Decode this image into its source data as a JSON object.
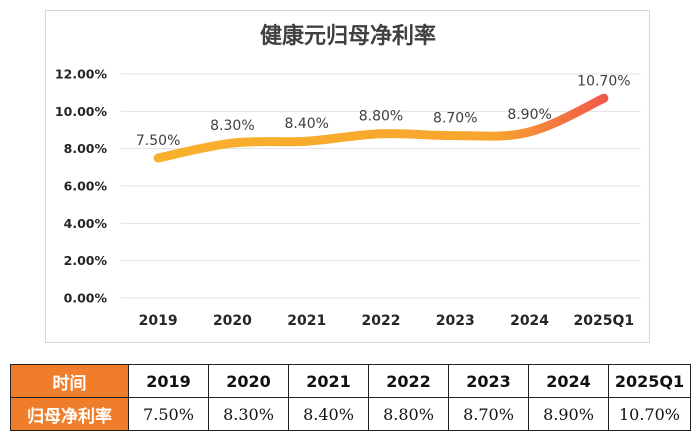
{
  "colors": {
    "line_start": "#F8B12C",
    "line_end": "#F0594A",
    "table_label_bg": "#EF7D2A"
  },
  "chart_data": {
    "type": "line",
    "title": "健康元归母净利率",
    "categories": [
      "2019",
      "2020",
      "2021",
      "2022",
      "2023",
      "2024",
      "2025Q1"
    ],
    "values": [
      7.5,
      8.3,
      8.4,
      8.8,
      8.7,
      8.9,
      10.7
    ],
    "data_labels": [
      "7.50%",
      "8.30%",
      "8.40%",
      "8.80%",
      "8.70%",
      "8.90%",
      "10.70%"
    ],
    "ylim": [
      0,
      12
    ],
    "yticks": [
      0,
      2,
      4,
      6,
      8,
      10,
      12
    ],
    "ytick_labels": [
      "0.00%",
      "2.00%",
      "4.00%",
      "6.00%",
      "8.00%",
      "10.00%",
      "12.00%"
    ],
    "grid": true,
    "smooth": true,
    "xlabel": "",
    "ylabel": ""
  },
  "table": {
    "header_label": "时间",
    "row_label": "归母净利率",
    "years": [
      "2019",
      "2020",
      "2021",
      "2022",
      "2023",
      "2024",
      "2025Q1"
    ],
    "values": [
      "7.50%",
      "8.30%",
      "8.40%",
      "8.80%",
      "8.70%",
      "8.90%",
      "10.70%"
    ]
  }
}
